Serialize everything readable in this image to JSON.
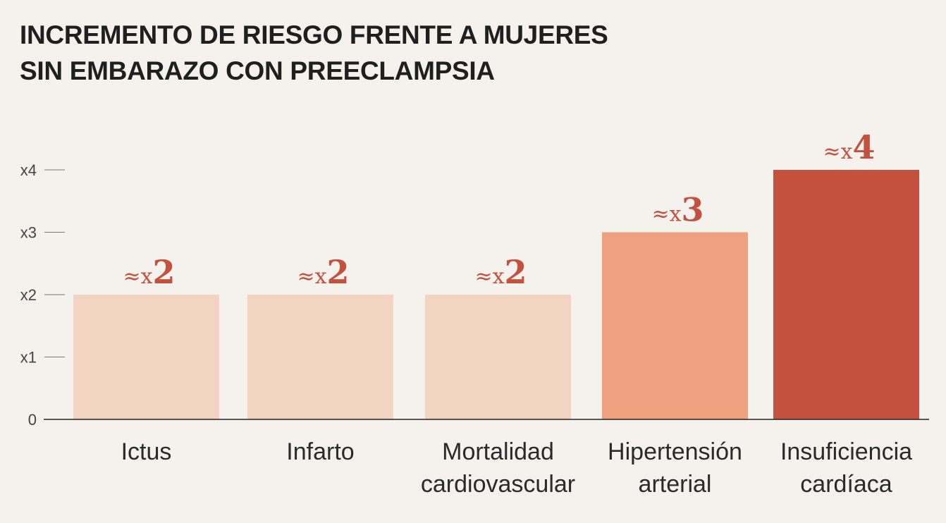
{
  "chart_data": {
    "type": "bar",
    "title": [
      "INCREMENTO DE RIESGO FRENTE A MUJERES",
      "SIN EMBARAZO CON PREECLAMPSIA"
    ],
    "categories": [
      [
        "Ictus"
      ],
      [
        "Infarto"
      ],
      [
        "Mortalidad",
        "cardiovascular"
      ],
      [
        "Hipertensión",
        "arterial"
      ],
      [
        "Insuficiencia",
        "cardíaca"
      ]
    ],
    "values": [
      2,
      2,
      2,
      3,
      4
    ],
    "data_labels": [
      {
        "prefix": "≈x",
        "value": "2"
      },
      {
        "prefix": "≈x",
        "value": "2"
      },
      {
        "prefix": "≈x",
        "value": "2"
      },
      {
        "prefix": "≈x",
        "value": "3"
      },
      {
        "prefix": "≈x",
        "value": "4"
      }
    ],
    "bar_colors": [
      "#f3d3c2",
      "#f3d3c2",
      "#f3d3c2",
      "#efa17f",
      "#c4513e"
    ],
    "label_color": "#c4513e",
    "y_ticks": [
      {
        "value": 0,
        "label": "0"
      },
      {
        "value": 1,
        "label": "x1"
      },
      {
        "value": 2,
        "label": "x2"
      },
      {
        "value": 3,
        "label": "x3"
      },
      {
        "value": 4,
        "label": "x4"
      }
    ],
    "ylim": [
      0,
      4
    ],
    "grid": false,
    "legend": "none"
  }
}
